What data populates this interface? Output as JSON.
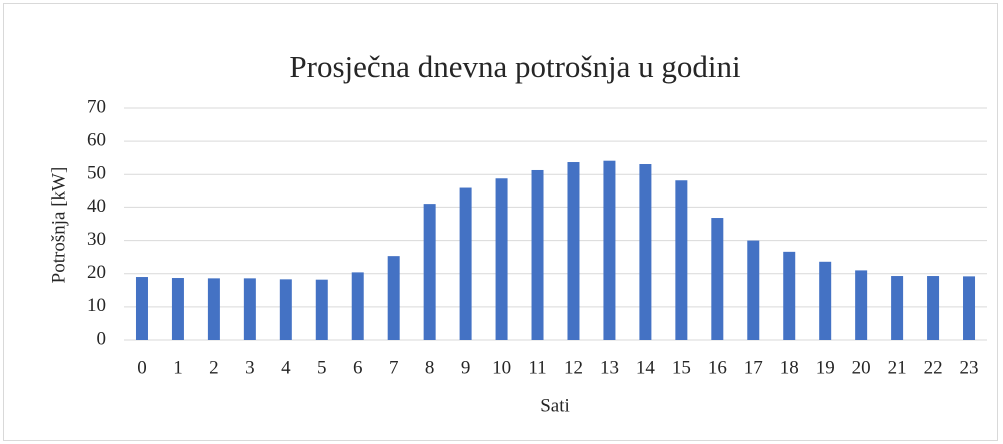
{
  "chart_data": {
    "type": "bar",
    "title": "Prosječna dnevna potrošnja u godini",
    "x_label": "Sati",
    "y_label": "Potrošnja [kW]",
    "categories": [
      "0",
      "1",
      "2",
      "3",
      "4",
      "5",
      "6",
      "7",
      "8",
      "9",
      "10",
      "11",
      "12",
      "13",
      "14",
      "15",
      "16",
      "17",
      "18",
      "19",
      "20",
      "21",
      "22",
      "23"
    ],
    "values": [
      19,
      18.7,
      18.6,
      18.6,
      18.3,
      18.2,
      20.4,
      25.3,
      41,
      46,
      48.8,
      51.3,
      53.7,
      54.1,
      53.1,
      48.2,
      36.8,
      30,
      26.6,
      23.6,
      21,
      19.3,
      19.3,
      19.2
    ],
    "color": "#4472c4",
    "ylim": [
      0,
      70
    ],
    "yticks": [
      0,
      10,
      20,
      30,
      40,
      50,
      60,
      70
    ],
    "grid": true
  }
}
